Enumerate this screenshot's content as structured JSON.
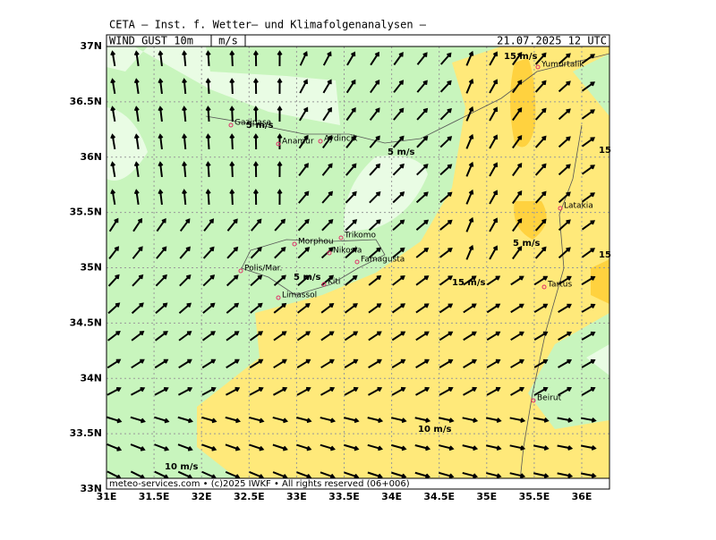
{
  "header": {
    "title": "CETA – Inst. f. Wetter– und Klimafolgenanalysen –",
    "field": "WIND_GUST_10m",
    "unit": "m/s",
    "time": "21.07.2025 12 UTC"
  },
  "footer": "meteo-services.com • (c)2025 IWKF • All rights reserved (06+006)",
  "lon_ticks": [
    {
      "value": 31,
      "label": "31E"
    },
    {
      "value": 31.5,
      "label": "31.5E"
    },
    {
      "value": 32,
      "label": "32E"
    },
    {
      "value": 32.5,
      "label": "32.5E"
    },
    {
      "value": 33,
      "label": "33E"
    },
    {
      "value": 33.5,
      "label": "33.5E"
    },
    {
      "value": 34,
      "label": "34E"
    },
    {
      "value": 34.5,
      "label": "34.5E"
    },
    {
      "value": 35,
      "label": "35E"
    },
    {
      "value": 35.5,
      "label": "35.5E"
    },
    {
      "value": 36,
      "label": "36E"
    }
  ],
  "lat_ticks": [
    {
      "value": 37,
      "label": "37N"
    },
    {
      "value": 36.5,
      "label": "36.5N"
    },
    {
      "value": 36,
      "label": "36N"
    },
    {
      "value": 35.5,
      "label": "35.5N"
    },
    {
      "value": 35,
      "label": "35N"
    },
    {
      "value": 34.5,
      "label": "34.5N"
    },
    {
      "value": 34,
      "label": "34N"
    },
    {
      "value": 33.5,
      "label": "33.5N"
    },
    {
      "value": 33,
      "label": "33N"
    }
  ],
  "cities": [
    "Gazipasa",
    "Anamur",
    "Aydincik",
    "Yumurtalik",
    "Latakia",
    "Tartus",
    "Beirut",
    "Trikomo",
    "Morphou",
    "Nikosia",
    "Famagusta",
    "Polis/Mar.",
    "Limassol",
    "Kiti"
  ],
  "contour_labels": [
    "15 m/s",
    "5 m/s",
    "5 m/s",
    "15",
    "5 m/s",
    "15",
    "5 m/s",
    "15 m/s",
    "10 m/s",
    "10 m/s"
  ]
}
